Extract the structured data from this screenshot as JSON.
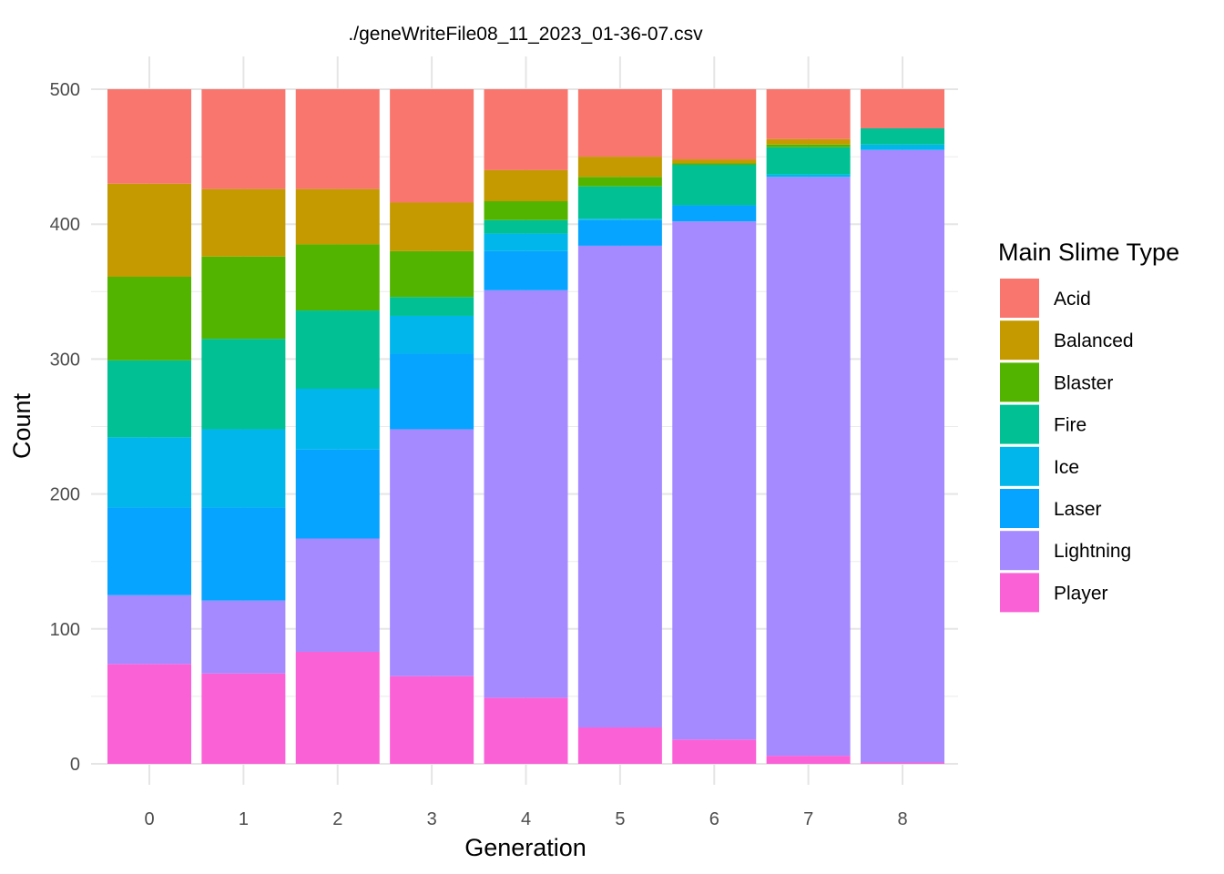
{
  "chart_data": {
    "type": "bar",
    "stacked": true,
    "title": "./geneWriteFile08_11_2023_01-36-07.csv",
    "xlabel": "Generation",
    "ylabel": "Count",
    "categories": [
      "0",
      "1",
      "2",
      "3",
      "4",
      "5",
      "6",
      "7",
      "8"
    ],
    "yticks": [
      "0",
      "100",
      "200",
      "300",
      "400",
      "500"
    ],
    "ylim": [
      0,
      500
    ],
    "grid": true,
    "legend_title": "Main Slime Type",
    "legend_position": "right",
    "series": [
      {
        "name": "Acid",
        "color": "#F8766D",
        "values": [
          70,
          74,
          74,
          84,
          60,
          50,
          52,
          37,
          29
        ]
      },
      {
        "name": "Balanced",
        "color": "#C49A00",
        "values": [
          69,
          50,
          41,
          36,
          23,
          15,
          3,
          4,
          0
        ]
      },
      {
        "name": "Blaster",
        "color": "#53B400",
        "values": [
          62,
          61,
          49,
          34,
          14,
          7,
          1,
          2,
          0
        ]
      },
      {
        "name": "Fire",
        "color": "#00C094",
        "values": [
          57,
          67,
          58,
          14,
          10,
          24,
          30,
          20,
          12
        ]
      },
      {
        "name": "Ice",
        "color": "#00B6EB",
        "values": [
          52,
          58,
          45,
          28,
          13,
          1,
          0,
          2,
          4
        ]
      },
      {
        "name": "Laser",
        "color": "#06A4FF",
        "values": [
          65,
          69,
          66,
          56,
          29,
          19,
          12,
          0,
          0
        ]
      },
      {
        "name": "Lightning",
        "color": "#A58AFF",
        "values": [
          51,
          54,
          84,
          183,
          302,
          357,
          384,
          429,
          454
        ]
      },
      {
        "name": "Player",
        "color": "#FB61D7",
        "values": [
          74,
          67,
          83,
          65,
          49,
          27,
          18,
          6,
          1
        ]
      }
    ]
  }
}
